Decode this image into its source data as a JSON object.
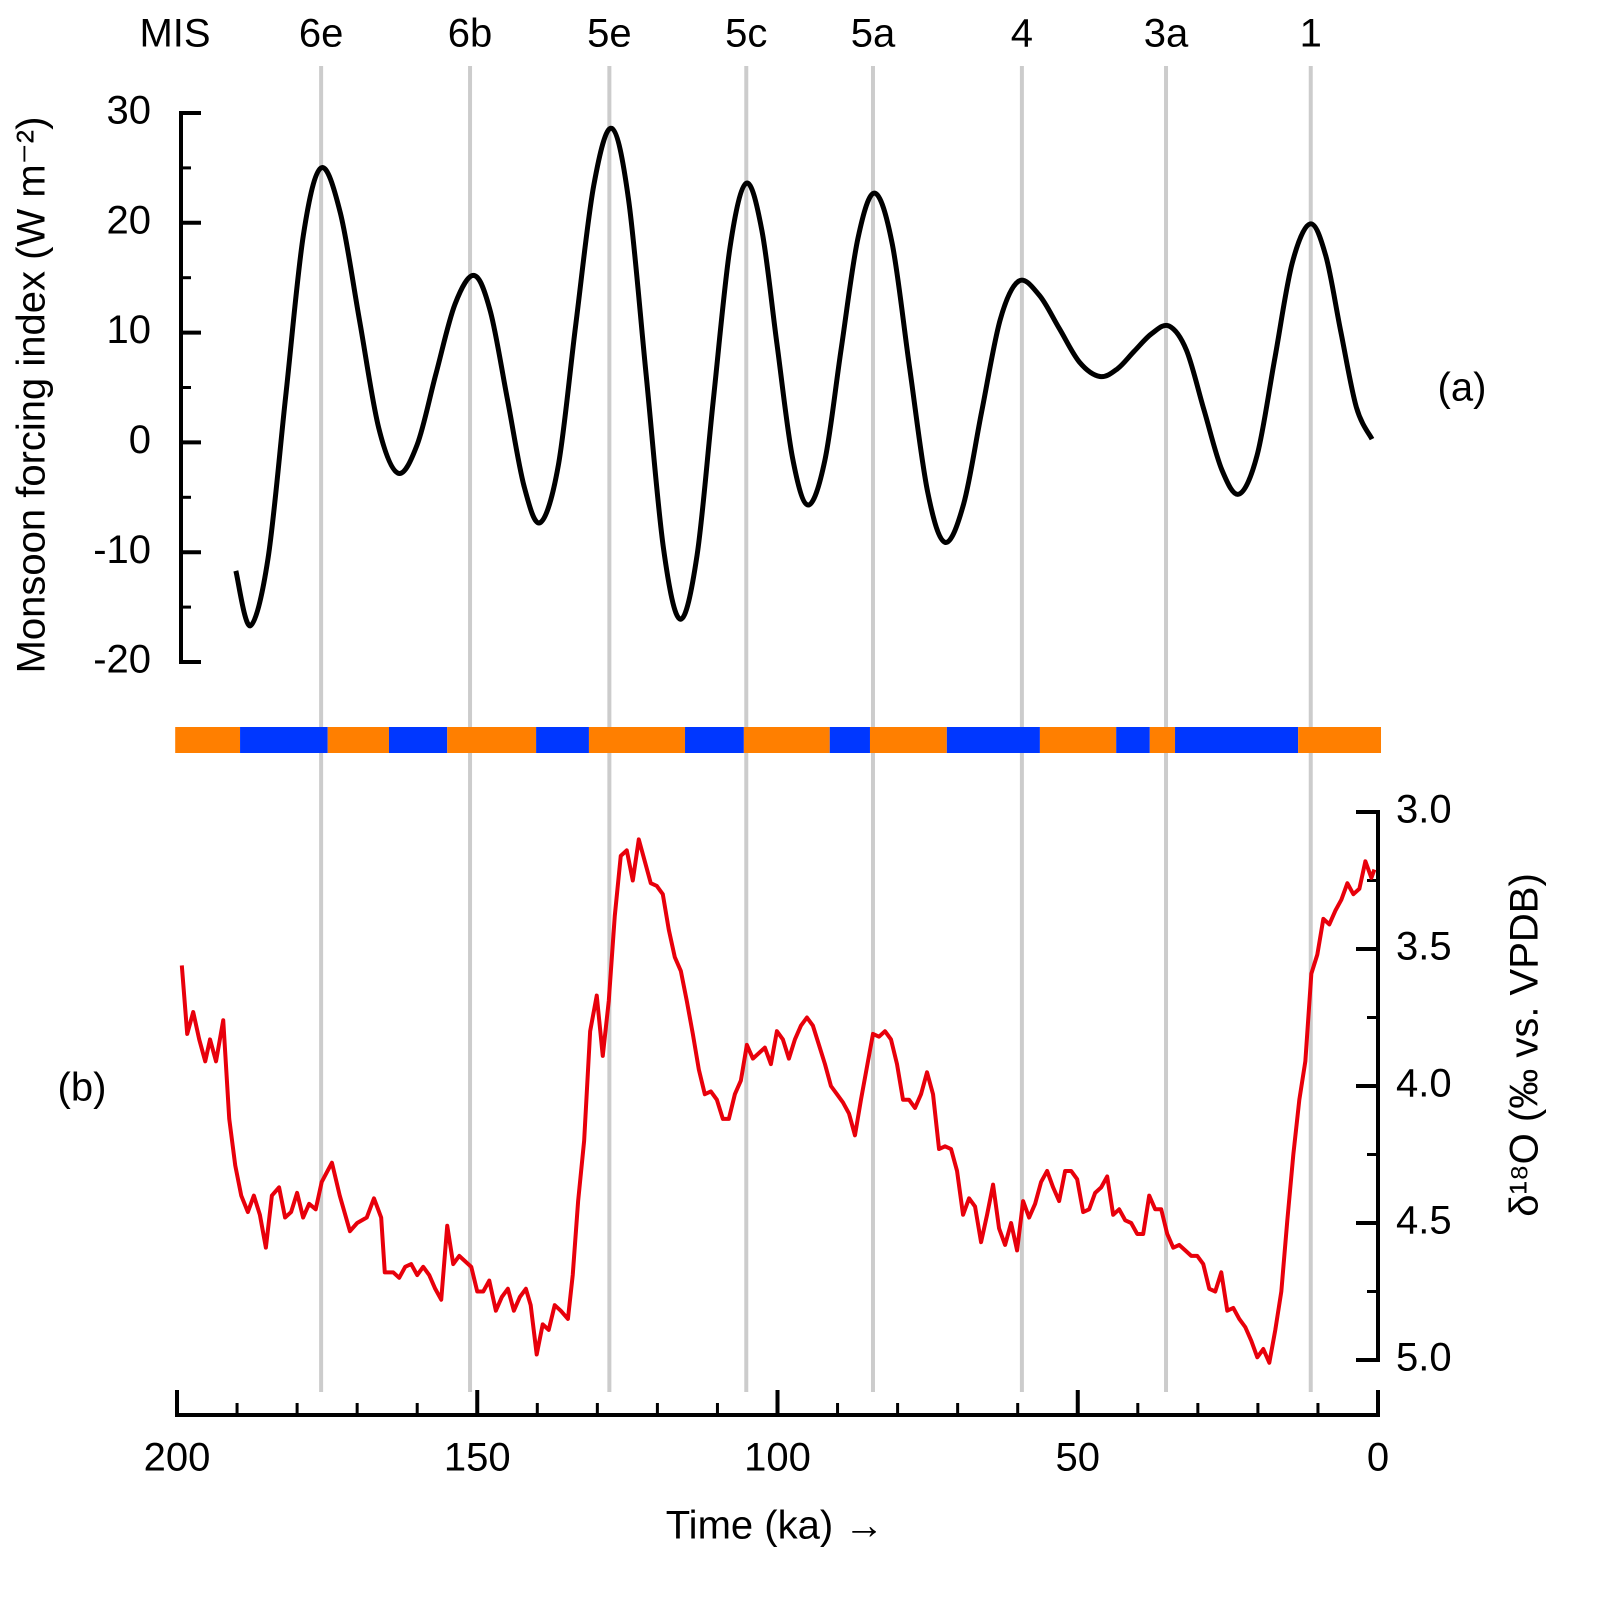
{
  "mis": {
    "label": "MIS",
    "line_color": "#cccccc",
    "stages": [
      {
        "label": "6e",
        "x": 176
      },
      {
        "label": "6b",
        "x": 151.2
      },
      {
        "label": "5e",
        "x": 128
      },
      {
        "label": "5c",
        "x": 105.2
      },
      {
        "label": "5a",
        "x": 84.1
      },
      {
        "label": "4",
        "x": 59.3
      },
      {
        "label": "3a",
        "x": 35.3
      },
      {
        "label": "1",
        "x": 11.2
      }
    ]
  },
  "bands": [
    {
      "from": 200.3,
      "to": 189.5,
      "color": "#ff7f00"
    },
    {
      "from": 189.5,
      "to": 174.9,
      "color": "#0037ff"
    },
    {
      "from": 174.9,
      "to": 164.7,
      "color": "#ff7f00"
    },
    {
      "from": 164.7,
      "to": 155.0,
      "color": "#0037ff"
    },
    {
      "from": 155.0,
      "to": 140.2,
      "color": "#ff7f00"
    },
    {
      "from": 140.2,
      "to": 131.4,
      "color": "#0037ff"
    },
    {
      "from": 131.4,
      "to": 115.4,
      "color": "#ff7f00"
    },
    {
      "from": 115.4,
      "to": 105.6,
      "color": "#0037ff"
    },
    {
      "from": 105.6,
      "to": 91.3,
      "color": "#ff7f00"
    },
    {
      "from": 91.3,
      "to": 84.6,
      "color": "#0037ff"
    },
    {
      "from": 84.6,
      "to": 71.8,
      "color": "#ff7f00"
    },
    {
      "from": 71.8,
      "to": 56.3,
      "color": "#0037ff"
    },
    {
      "from": 56.3,
      "to": 43.6,
      "color": "#ff7f00"
    },
    {
      "from": 43.6,
      "to": 38.0,
      "color": "#0037ff"
    },
    {
      "from": 38.0,
      "to": 33.8,
      "color": "#ff7f00"
    },
    {
      "from": 33.8,
      "to": 13.3,
      "color": "#0037ff"
    },
    {
      "from": 13.3,
      "to": -0.5,
      "color": "#ff7f00"
    }
  ],
  "chart_data": [
    {
      "type": "line",
      "panel_label": "(a)",
      "y_label": "Monsoon forcing index (W m⁻²)",
      "color": "#000000",
      "xlim": [
        200,
        0
      ],
      "ylim": [
        -20,
        30
      ],
      "yticks": [
        -20,
        -10,
        0,
        10,
        20,
        30
      ],
      "y_minor_ticks": [
        -15,
        -5,
        5,
        15,
        25
      ],
      "x": [
        190.2,
        187.8,
        184.85,
        181.9,
        178.95,
        176.0,
        172.8,
        169.6,
        166.4,
        163.2,
        160.0,
        156.9,
        153.7,
        150.5,
        147.8,
        145.0,
        142.2,
        139.5,
        136.5,
        133.6,
        130.6,
        127.6,
        124.8,
        121.9,
        119.0,
        116.2,
        113.4,
        110.7,
        107.9,
        105.2,
        102.6,
        100.1,
        97.5,
        94.9,
        92.1,
        89.4,
        86.6,
        83.8,
        80.9,
        78.0,
        75.0,
        72.1,
        69.0,
        66.0,
        62.9,
        59.8,
        56.4,
        53.1,
        49.7,
        46.3,
        43.4,
        40.6,
        37.7,
        34.8,
        31.9,
        29.0,
        26.0,
        23.1,
        20.1,
        17.2,
        14.3,
        11.3,
        8.7,
        6.2,
        3.6,
        1.0
      ],
      "values": [
        -11.7,
        -16.7,
        -10.6,
        4.2,
        18.9,
        25.0,
        20.9,
        11.1,
        1.3,
        -2.8,
        -0.2,
        6.2,
        12.6,
        15.2,
        11.9,
        4.0,
        -4.0,
        -7.3,
        -2.1,
        10.7,
        23.4,
        28.6,
        22.1,
        6.3,
        -9.6,
        -16.1,
        -10.3,
        3.8,
        17.8,
        23.6,
        19.3,
        9.0,
        -1.4,
        -5.7,
        -1.6,
        8.5,
        18.6,
        22.7,
        18.1,
        6.8,
        -4.5,
        -9.1,
        -5.6,
        2.8,
        11.2,
        14.7,
        13.4,
        10.4,
        7.3,
        6.0,
        6.7,
        8.3,
        9.9,
        10.6,
        8.4,
        3.0,
        -2.5,
        -4.7,
        -1.1,
        7.6,
        16.3,
        19.9,
        17.0,
        10.1,
        3.2,
        0.3
      ]
    },
    {
      "type": "line",
      "panel_label": "(b)",
      "y_label": "δ¹⁸O (‰ vs. VPDB)",
      "x_label": "Time (ka) →",
      "color": "#e8000b",
      "xlim": [
        200,
        0
      ],
      "xticks": [
        200,
        150,
        100,
        50,
        0
      ],
      "x_minor_ticks": [
        190,
        180,
        170,
        160,
        140,
        130,
        120,
        110,
        90,
        80,
        70,
        60,
        40,
        30,
        20,
        10
      ],
      "ylim": [
        5,
        3
      ],
      "yticks": [
        {
          "value": 3,
          "label": "3.0"
        },
        {
          "value": 3.5,
          "label": "3.5"
        },
        {
          "value": 4,
          "label": "4.0"
        },
        {
          "value": 4.5,
          "label": "4.5"
        },
        {
          "value": 5,
          "label": "5.0"
        }
      ],
      "y_minor_ticks": [
        3.25,
        3.75,
        4.25,
        4.75
      ],
      "x": [
        199.2,
        198.3,
        197.3,
        196.3,
        195.3,
        194.5,
        193.5,
        192.3,
        191.3,
        190.3,
        189.3,
        188.2,
        187.2,
        186.2,
        185.2,
        184.2,
        183.0,
        182.0,
        181.0,
        180.0,
        179.0,
        178.0,
        176.9,
        175.9,
        174.2,
        172.9,
        171.2,
        170.0,
        168.4,
        167.2,
        166.0,
        165.4,
        164.0,
        163.0,
        162.0,
        161.0,
        160.0,
        159.0,
        158.0,
        157.0,
        156.0,
        155.0,
        154.0,
        153.0,
        152.0,
        151.0,
        150.0,
        149.0,
        148.0,
        146.9,
        145.9,
        144.9,
        143.9,
        142.9,
        141.9,
        141.1,
        140.1,
        139.1,
        138.1,
        137.1,
        136.1,
        134.9,
        134.1,
        133.2,
        132.2,
        131.2,
        130.1,
        129.1,
        128.1,
        127.1,
        126.1,
        125.1,
        124.1,
        123.1,
        122.1,
        121.1,
        120.1,
        119.1,
        118.1,
        117.1,
        116.1,
        115.1,
        114.1,
        113.1,
        112.1,
        111.1,
        110.1,
        109.1,
        108.1,
        107.1,
        106.1,
        105.1,
        104.1,
        103.1,
        102.1,
        101.1,
        100.1,
        99.1,
        98.1,
        97.1,
        96.1,
        95.1,
        94.1,
        93.1,
        92.1,
        91.1,
        90.1,
        89.1,
        88.1,
        87.1,
        86.1,
        85.1,
        84.1,
        83.1,
        82.1,
        81.1,
        80.1,
        79.1,
        78.1,
        77.1,
        76.1,
        75.1,
        74.1,
        73.1,
        72.1,
        71.1,
        70.1,
        69.1,
        68.1,
        67.1,
        66.1,
        65.1,
        64.1,
        63.1,
        62.1,
        61.1,
        60.1,
        59.1,
        58.1,
        57.1,
        56.1,
        55.1,
        54.1,
        53.1,
        52.1,
        51.1,
        50.1,
        49.1,
        48.1,
        47.1,
        46.1,
        45.1,
        44.1,
        43.1,
        42.1,
        41.1,
        40.1,
        39.1,
        38.1,
        37.1,
        36.1,
        35.1,
        34.1,
        33.1,
        32.1,
        31.1,
        30.1,
        29.1,
        28.1,
        27.1,
        26.1,
        25.1,
        24.1,
        23.1,
        22.1,
        21.1,
        20.1,
        19.1,
        18.1,
        17.1,
        16.1,
        15.1,
        14.1,
        13.1,
        12.1,
        11.1,
        10.1,
        9.1,
        8.1,
        7.1,
        6.1,
        5.1,
        4.1,
        3.1,
        2.1,
        1.1,
        0.6
      ],
      "values": [
        3.56,
        3.81,
        3.73,
        3.83,
        3.91,
        3.83,
        3.91,
        3.76,
        4.12,
        4.29,
        4.4,
        4.46,
        4.4,
        4.47,
        4.59,
        4.4,
        4.37,
        4.48,
        4.46,
        4.39,
        4.48,
        4.43,
        4.45,
        4.35,
        4.28,
        4.4,
        4.53,
        4.5,
        4.48,
        4.41,
        4.48,
        4.68,
        4.68,
        4.7,
        4.66,
        4.65,
        4.69,
        4.66,
        4.69,
        4.74,
        4.78,
        4.51,
        4.65,
        4.62,
        4.64,
        4.66,
        4.75,
        4.75,
        4.71,
        4.82,
        4.77,
        4.74,
        4.82,
        4.77,
        4.74,
        4.8,
        4.98,
        4.87,
        4.89,
        4.8,
        4.82,
        4.85,
        4.69,
        4.42,
        4.2,
        3.8,
        3.67,
        3.89,
        3.69,
        3.38,
        3.16,
        3.14,
        3.25,
        3.1,
        3.18,
        3.26,
        3.27,
        3.3,
        3.43,
        3.53,
        3.58,
        3.69,
        3.81,
        3.94,
        4.03,
        4.02,
        4.05,
        4.12,
        4.12,
        4.03,
        3.98,
        3.85,
        3.9,
        3.88,
        3.86,
        3.92,
        3.8,
        3.83,
        3.9,
        3.83,
        3.78,
        3.75,
        3.78,
        3.85,
        3.92,
        4.0,
        4.03,
        4.06,
        4.1,
        4.18,
        4.05,
        3.93,
        3.81,
        3.82,
        3.8,
        3.83,
        3.92,
        4.05,
        4.05,
        4.08,
        4.03,
        3.95,
        4.03,
        4.23,
        4.22,
        4.23,
        4.31,
        4.47,
        4.41,
        4.44,
        4.57,
        4.47,
        4.36,
        4.52,
        4.58,
        4.5,
        4.6,
        4.42,
        4.48,
        4.43,
        4.35,
        4.31,
        4.37,
        4.42,
        4.31,
        4.31,
        4.34,
        4.46,
        4.45,
        4.39,
        4.37,
        4.33,
        4.47,
        4.45,
        4.49,
        4.5,
        4.54,
        4.54,
        4.4,
        4.45,
        4.45,
        4.54,
        4.59,
        4.58,
        4.6,
        4.62,
        4.62,
        4.65,
        4.74,
        4.75,
        4.68,
        4.82,
        4.81,
        4.85,
        4.88,
        4.93,
        4.99,
        4.96,
        5.01,
        4.89,
        4.75,
        4.49,
        4.25,
        4.05,
        3.91,
        3.59,
        3.52,
        3.39,
        3.41,
        3.36,
        3.32,
        3.26,
        3.3,
        3.28,
        3.18,
        3.24,
        3.21
      ]
    }
  ]
}
